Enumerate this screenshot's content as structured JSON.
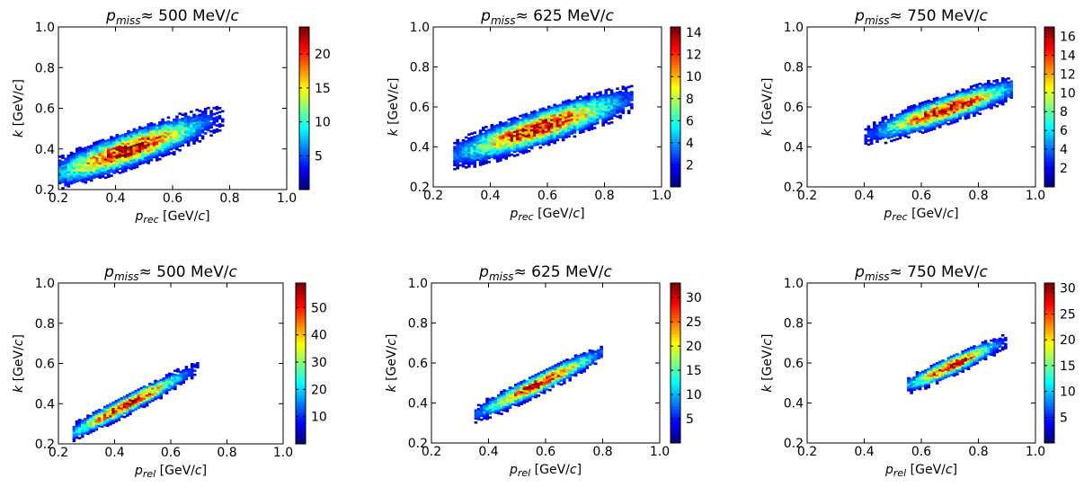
{
  "chart_data": [
    {
      "type": "heatmap",
      "title_prefix": "p",
      "title_sub": "miss",
      "title_suffix": "≈  500 MeV/",
      "title_unit": "c",
      "xlabel_sym": "p",
      "xlabel_sub": "rec",
      "xlabel_text": " [GeV/",
      "xlabel_unit": "c",
      "xlabel_close": "]",
      "ylabel": "k [GeV/c]",
      "xlim": [
        0.2,
        1.0
      ],
      "ylim": [
        0.2,
        1.0
      ],
      "xticks": [
        "0.2",
        "0.4",
        "0.6",
        "0.8",
        "1.0"
      ],
      "yticks": [
        "0.2",
        "0.4",
        "0.6",
        "0.8",
        "1.0"
      ],
      "colorbar_max": 24,
      "colorbar_ticks": [
        "5",
        "10",
        "15",
        "20"
      ],
      "blob": {
        "cx": 0.44,
        "cy": 0.39,
        "x_range": [
          0.2,
          0.78
        ],
        "slope": 0.48,
        "width": 0.045
      }
    },
    {
      "type": "heatmap",
      "title_prefix": "p",
      "title_sub": "miss",
      "title_suffix": "≈  625 MeV/",
      "title_unit": "c",
      "xlabel_sym": "p",
      "xlabel_sub": "rec",
      "xlabel_text": " [GeV/",
      "xlabel_unit": "c",
      "xlabel_close": "]",
      "ylabel": "k [GeV/c]",
      "xlim": [
        0.2,
        1.0
      ],
      "ylim": [
        0.2,
        1.0
      ],
      "xticks": [
        "0.2",
        "0.4",
        "0.6",
        "0.8",
        "1.0"
      ],
      "yticks": [
        "0.2",
        "0.4",
        "0.6",
        "0.8",
        "1.0"
      ],
      "colorbar_max": 14.5,
      "colorbar_ticks": [
        "2",
        "4",
        "6",
        "8",
        "10",
        "12",
        "14"
      ],
      "blob": {
        "cx": 0.57,
        "cy": 0.49,
        "x_range": [
          0.27,
          0.9
        ],
        "slope": 0.46,
        "width": 0.045
      }
    },
    {
      "type": "heatmap",
      "title_prefix": "p",
      "title_sub": "miss",
      "title_suffix": "≈  750 MeV/",
      "title_unit": "c",
      "xlabel_sym": "p",
      "xlabel_sub": "rec",
      "xlabel_text": " [GeV/",
      "xlabel_unit": "c",
      "xlabel_close": "]",
      "ylabel": "k [GeV/c]",
      "xlim": [
        0.2,
        1.0
      ],
      "ylim": [
        0.2,
        1.0
      ],
      "xticks": [
        "0.2",
        "0.4",
        "0.6",
        "0.8",
        "1.0"
      ],
      "yticks": [
        "0.2",
        "0.4",
        "0.6",
        "0.8",
        "1.0"
      ],
      "colorbar_max": 17,
      "colorbar_ticks": [
        "2",
        "4",
        "6",
        "8",
        "10",
        "12",
        "14",
        "16"
      ],
      "blob": {
        "cx": 0.68,
        "cy": 0.58,
        "x_range": [
          0.4,
          0.92
        ],
        "slope": 0.47,
        "width": 0.035
      }
    },
    {
      "type": "heatmap",
      "title_prefix": "p",
      "title_sub": "miss",
      "title_suffix": "≈  500 MeV/",
      "title_unit": "c",
      "xlabel_sym": "p",
      "xlabel_sub": "rel",
      "xlabel_text": " [GeV/",
      "xlabel_unit": "c",
      "xlabel_close": "]",
      "ylabel": "k [GeV/c]",
      "xlim": [
        0.2,
        1.0
      ],
      "ylim": [
        0.2,
        1.0
      ],
      "xticks": [
        "0.2",
        "0.4",
        "0.6",
        "0.8",
        "1.0"
      ],
      "yticks": [
        "0.2",
        "0.4",
        "0.6",
        "0.8",
        "1.0"
      ],
      "colorbar_max": 59,
      "colorbar_ticks": [
        "10",
        "20",
        "30",
        "40",
        "50"
      ],
      "blob": {
        "cx": 0.44,
        "cy": 0.39,
        "x_range": [
          0.25,
          0.7
        ],
        "slope": 0.72,
        "width": 0.025
      }
    },
    {
      "type": "heatmap",
      "title_prefix": "p",
      "title_sub": "miss",
      "title_suffix": "≈  625 MeV/",
      "title_unit": "c",
      "xlabel_sym": "p",
      "xlabel_sub": "rel",
      "xlabel_text": " [GeV/",
      "xlabel_unit": "c",
      "xlabel_close": "]",
      "ylabel": "k [GeV/c]",
      "xlim": [
        0.2,
        1.0
      ],
      "ylim": [
        0.2,
        1.0
      ],
      "xticks": [
        "0.2",
        "0.4",
        "0.6",
        "0.8",
        "1.0"
      ],
      "yticks": [
        "0.2",
        "0.4",
        "0.6",
        "0.8",
        "1.0"
      ],
      "colorbar_max": 33,
      "colorbar_ticks": [
        "5",
        "10",
        "15",
        "20",
        "25",
        "30"
      ],
      "blob": {
        "cx": 0.57,
        "cy": 0.49,
        "x_range": [
          0.35,
          0.8
        ],
        "slope": 0.7,
        "width": 0.027
      }
    },
    {
      "type": "heatmap",
      "title_prefix": "p",
      "title_sub": "miss",
      "title_suffix": "≈  750 MeV/",
      "title_unit": "c",
      "xlabel_sym": "p",
      "xlabel_sub": "rel",
      "xlabel_text": " [GeV/",
      "xlabel_unit": "c",
      "xlabel_close": "]",
      "ylabel": "k [GeV/c]",
      "xlim": [
        0.2,
        1.0
      ],
      "ylim": [
        0.2,
        1.0
      ],
      "xticks": [
        "0.2",
        "0.4",
        "0.6",
        "0.8",
        "1.0"
      ],
      "yticks": [
        "0.2",
        "0.4",
        "0.6",
        "0.8",
        "1.0"
      ],
      "colorbar_max": 31,
      "colorbar_ticks": [
        "5",
        "10",
        "15",
        "20",
        "25",
        "30"
      ],
      "blob": {
        "cx": 0.7,
        "cy": 0.58,
        "x_range": [
          0.55,
          0.9
        ],
        "slope": 0.65,
        "width": 0.025
      }
    }
  ]
}
